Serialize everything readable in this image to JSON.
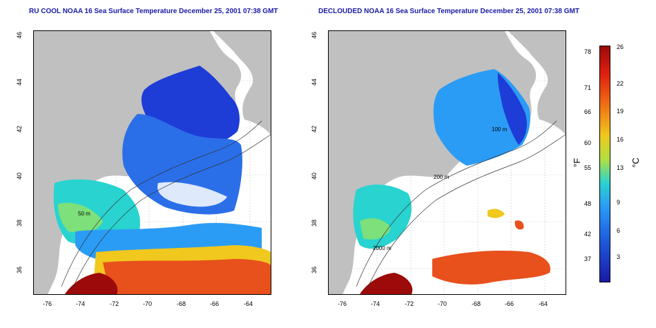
{
  "panels": [
    {
      "title": "RU COOL NOAA 16 Sea Surface Temperature December 25, 2001 07:38 GMT"
    },
    {
      "title": "DECLOUDED NOAA 16 Sea Surface Temperature December 25, 2001 07:38 GMT"
    }
  ],
  "axes": {
    "lat_ticks": [
      "46",
      "44",
      "42",
      "40",
      "38",
      "36"
    ],
    "lon_ticks": [
      "-76",
      "-74",
      "-72",
      "-70",
      "-68",
      "-66",
      "-64"
    ]
  },
  "contour_labels": [
    "50 m",
    "200 m",
    "100 m",
    "2000 m"
  ],
  "colorbar": {
    "fahrenheit_label": "°F",
    "celsius_label": "°C",
    "fahrenheit_ticks": [
      "78",
      "71",
      "66",
      "60",
      "55",
      "48",
      "42",
      "37"
    ],
    "celsius_ticks": [
      "26",
      "22",
      "19",
      "16",
      "13",
      "9",
      "6",
      "3"
    ]
  },
  "colors": {
    "land": "#c0c0c0",
    "cold": "#1e3cd6",
    "cool": "#2b9cf5",
    "mid": "#29d3cf",
    "warm": "#f0c81e",
    "hot": "#e8501c",
    "hottest": "#9c0a0a"
  }
}
